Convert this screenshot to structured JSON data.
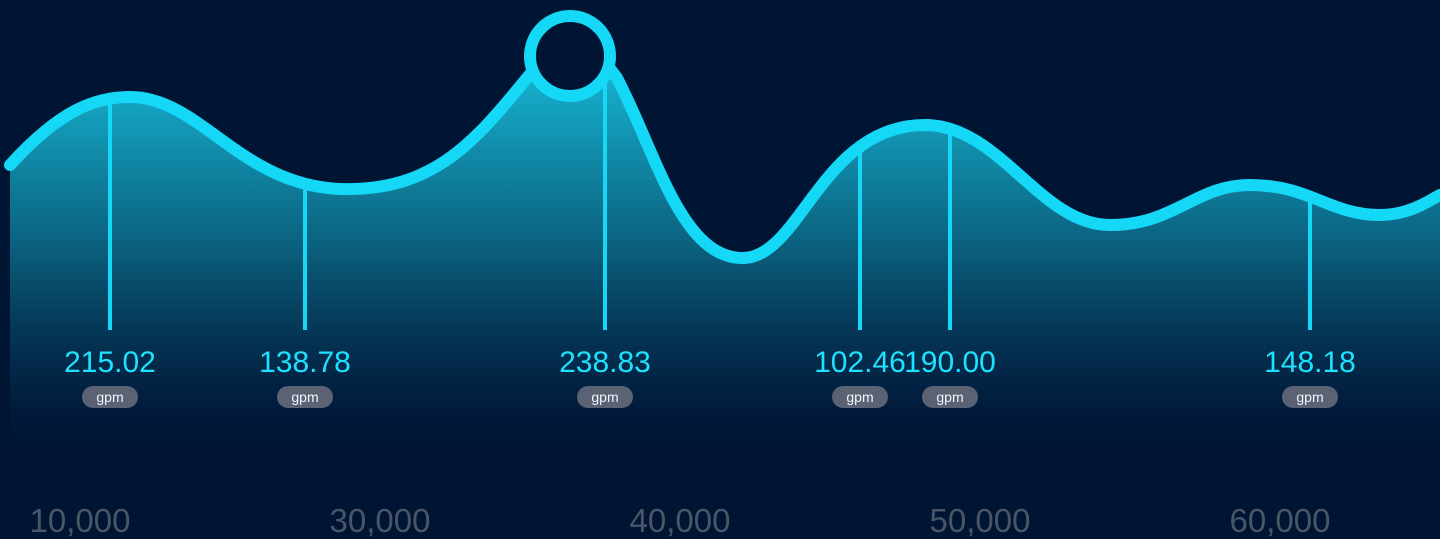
{
  "chart_data": {
    "type": "area",
    "unit": "gpm",
    "x_ticks": [
      "10,000",
      "30,000",
      "40,000",
      "50,000",
      "60,000"
    ],
    "x": [
      12000,
      25000,
      37500,
      46000,
      49000,
      61000
    ],
    "y": [
      215.02,
      138.78,
      238.83,
      102.46,
      190.0,
      148.18
    ],
    "value_labels": [
      "215.02",
      "138.78",
      "238.83",
      "102.46",
      "190.00",
      "148.18"
    ],
    "highlighted_point": "238.83",
    "colors": {
      "background": "#001433",
      "line": "#15d8f7",
      "label": "#1ee0ff",
      "area_top": "#17b8d6",
      "badge": "#5a6273",
      "tick": "#4a5568"
    }
  }
}
